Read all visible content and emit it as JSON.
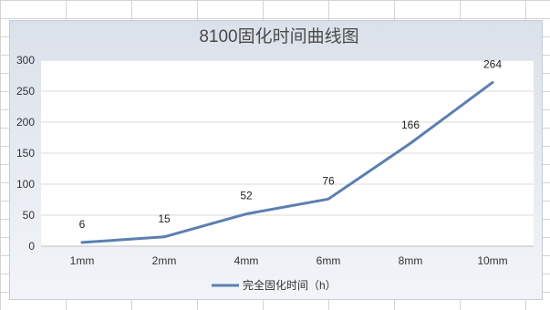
{
  "chart_data": {
    "type": "line",
    "title": "8100固化时间曲线图",
    "categories": [
      "1mm",
      "2mm",
      "4mm",
      "6mm",
      "8mm",
      "10mm"
    ],
    "series": [
      {
        "name": "完全固化时间（h）",
        "values": [
          6,
          15,
          52,
          76,
          166,
          264
        ],
        "color": "#5b7fb0"
      }
    ],
    "y_ticks": [
      "0",
      "50",
      "100",
      "150",
      "200",
      "250",
      "300"
    ],
    "ylim": [
      0,
      300
    ],
    "grid": true,
    "legend_position": "bottom",
    "data_labels": [
      "6",
      "15",
      "52",
      "76",
      "166",
      "264"
    ]
  }
}
